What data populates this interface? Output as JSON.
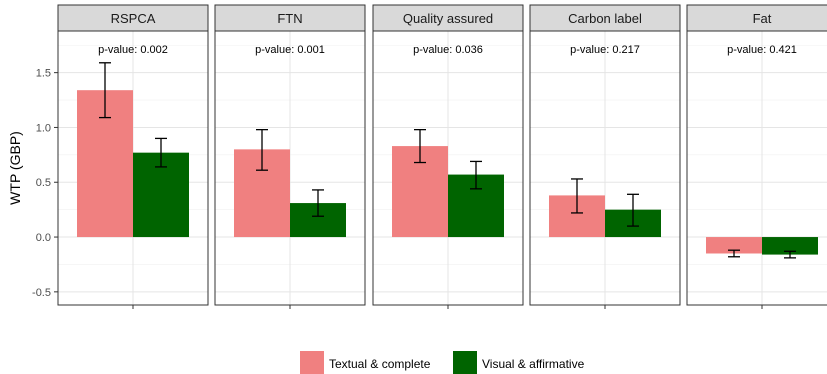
{
  "chart_data": {
    "type": "bar",
    "ylabel": "WTP (GBP)",
    "ylim": [
      -0.62,
      1.88
    ],
    "yticks": [
      -0.5,
      0.0,
      0.5,
      1.0,
      1.5
    ],
    "ytick_labels": [
      "-0.5",
      "0.0",
      "0.5",
      "1.0",
      "1.5"
    ],
    "grid": true,
    "legend_position": "bottom",
    "colors": {
      "Textual & complete": "#f08080",
      "Visual & affirmative": "#006400"
    },
    "series_names": [
      "Textual & complete",
      "Visual & affirmative"
    ],
    "panels": [
      {
        "title": "RSPCA",
        "pvalue": "p-value: 0.002",
        "values": [
          1.34,
          0.77
        ],
        "ci_low": [
          1.09,
          0.64
        ],
        "ci_high": [
          1.59,
          0.9
        ]
      },
      {
        "title": "FTN",
        "pvalue": "p-value: 0.001",
        "values": [
          0.8,
          0.31
        ],
        "ci_low": [
          0.61,
          0.19
        ],
        "ci_high": [
          0.98,
          0.43
        ]
      },
      {
        "title": "Quality assured",
        "pvalue": "p-value: 0.036",
        "values": [
          0.83,
          0.57
        ],
        "ci_low": [
          0.68,
          0.44
        ],
        "ci_high": [
          0.98,
          0.69
        ]
      },
      {
        "title": "Carbon label",
        "pvalue": "p-value: 0.217",
        "values": [
          0.38,
          0.25
        ],
        "ci_low": [
          0.22,
          0.1
        ],
        "ci_high": [
          0.53,
          0.39
        ]
      },
      {
        "title": "Fat",
        "pvalue": "p-value: 0.421",
        "values": [
          -0.15,
          -0.16
        ],
        "ci_low": [
          -0.18,
          -0.19
        ],
        "ci_high": [
          -0.12,
          -0.13
        ]
      }
    ]
  }
}
